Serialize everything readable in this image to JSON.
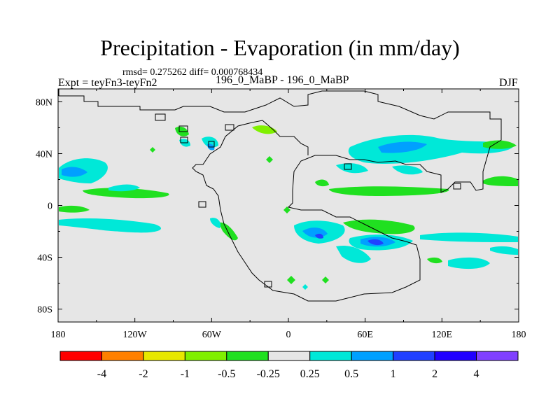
{
  "title": "Precipitation - Evaporation (in mm/day)",
  "stats_line": "rmsd= 0.275262 diff= 0.000768434",
  "left_label": "Expt = teyFn3-teyFn2",
  "center_label": "196_0_MaBP - 196_0_MaBP",
  "right_label": "DJF",
  "x_ticks": [
    "180",
    "120W",
    "60W",
    "0",
    "60E",
    "120E",
    "180"
  ],
  "y_ticks": [
    "80N",
    "40N",
    "0",
    "40S",
    "80S"
  ],
  "colorbar": {
    "labels": [
      "-4",
      "-2",
      "-1",
      "-0.5",
      "-0.25",
      "0.25",
      "0.5",
      "1",
      "2",
      "4"
    ],
    "colors": [
      "#ff0000",
      "#ff8000",
      "#e8e800",
      "#80f000",
      "#20e020",
      "#e6e6e6",
      "#00e8d8",
      "#00a0ff",
      "#2040ff",
      "#2000ff",
      "#8040ff"
    ]
  },
  "chart_data": {
    "type": "heatmap",
    "title": "Precipitation - Evaporation (in mm/day)",
    "units": "mm/day",
    "season": "DJF",
    "rmsd": 0.275262,
    "diff": 0.000768434,
    "xlim": [
      -180,
      180
    ],
    "ylim": [
      -90,
      90
    ],
    "contour_levels": [
      -4,
      -2,
      -1,
      -0.5,
      -0.25,
      0.25,
      0.5,
      1,
      2,
      4
    ],
    "background_value_range": "-0.25 to 0.25",
    "anomaly_regions": [
      {
        "region": "North Pacific",
        "lon": -160,
        "lat": 27,
        "value_range": "0.5 to 1"
      },
      {
        "region": "North Pacific band",
        "lon": -130,
        "lat": 12,
        "value_range": "-0.5 to -0.25"
      },
      {
        "region": "Equatorial Atlantic",
        "lon": -20,
        "lat": 20,
        "value_range": "-0.5 to -0.25"
      },
      {
        "region": "South Pacific band",
        "lon": -140,
        "lat": -18,
        "value_range": "0.25 to 0.5"
      },
      {
        "region": "Indian Ocean / Africa",
        "lon": 30,
        "lat": -22,
        "value_range": "0.5 to 2"
      },
      {
        "region": "Southern Indian Ocean",
        "lon": 65,
        "lat": -28,
        "value_range": "1 to 2"
      },
      {
        "region": "Central Asia",
        "lon": 85,
        "lat": 45,
        "value_range": "0.25 to 1"
      },
      {
        "region": "Northern Tethys band",
        "lon": 75,
        "lat": 10,
        "value_range": "-0.5 to -0.25"
      },
      {
        "region": "Southwest Pacific",
        "lon": 160,
        "lat": -35,
        "value_range": "0.25 to 0.5"
      }
    ]
  }
}
